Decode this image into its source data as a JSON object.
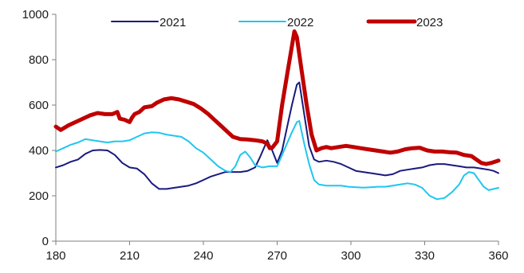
{
  "chart_data": {
    "type": "line",
    "title": "",
    "xlabel": "",
    "ylabel": "",
    "xlim": [
      180,
      360
    ],
    "ylim": [
      0,
      1000
    ],
    "xticks": [
      180,
      210,
      240,
      270,
      300,
      330,
      360
    ],
    "yticks": [
      0,
      200,
      400,
      600,
      800,
      1000
    ],
    "grid": false,
    "legend_position": "top",
    "series": [
      {
        "name": "2021",
        "color": "#1a1a7e",
        "points": [
          [
            180,
            325
          ],
          [
            183,
            335
          ],
          [
            186,
            350
          ],
          [
            189,
            360
          ],
          [
            192,
            385
          ],
          [
            195,
            400
          ],
          [
            198,
            402
          ],
          [
            201,
            400
          ],
          [
            204,
            380
          ],
          [
            207,
            345
          ],
          [
            210,
            325
          ],
          [
            213,
            320
          ],
          [
            216,
            295
          ],
          [
            219,
            255
          ],
          [
            222,
            230
          ],
          [
            225,
            230
          ],
          [
            228,
            235
          ],
          [
            231,
            240
          ],
          [
            234,
            245
          ],
          [
            237,
            255
          ],
          [
            240,
            270
          ],
          [
            243,
            285
          ],
          [
            246,
            295
          ],
          [
            249,
            305
          ],
          [
            252,
            305
          ],
          [
            255,
            305
          ],
          [
            258,
            310
          ],
          [
            261,
            325
          ],
          [
            263,
            370
          ],
          [
            265,
            420
          ],
          [
            266,
            445
          ],
          [
            268,
            400
          ],
          [
            270,
            345
          ],
          [
            272,
            400
          ],
          [
            274,
            500
          ],
          [
            276,
            600
          ],
          [
            278,
            690
          ],
          [
            279,
            700
          ],
          [
            281,
            560
          ],
          [
            283,
            420
          ],
          [
            285,
            360
          ],
          [
            287,
            350
          ],
          [
            290,
            355
          ],
          [
            293,
            350
          ],
          [
            296,
            340
          ],
          [
            299,
            325
          ],
          [
            302,
            310
          ],
          [
            305,
            305
          ],
          [
            308,
            300
          ],
          [
            311,
            295
          ],
          [
            314,
            290
          ],
          [
            317,
            295
          ],
          [
            320,
            310
          ],
          [
            323,
            315
          ],
          [
            326,
            320
          ],
          [
            329,
            325
          ],
          [
            332,
            335
          ],
          [
            335,
            340
          ],
          [
            338,
            340
          ],
          [
            341,
            335
          ],
          [
            344,
            330
          ],
          [
            347,
            325
          ],
          [
            350,
            325
          ],
          [
            353,
            320
          ],
          [
            356,
            315
          ],
          [
            358,
            310
          ],
          [
            360,
            300
          ]
        ]
      },
      {
        "name": "2022",
        "color": "#1fc6f0",
        "points": [
          [
            180,
            395
          ],
          [
            183,
            410
          ],
          [
            186,
            425
          ],
          [
            189,
            435
          ],
          [
            192,
            450
          ],
          [
            195,
            445
          ],
          [
            198,
            440
          ],
          [
            201,
            435
          ],
          [
            204,
            440
          ],
          [
            207,
            440
          ],
          [
            210,
            445
          ],
          [
            213,
            460
          ],
          [
            216,
            475
          ],
          [
            219,
            480
          ],
          [
            222,
            478
          ],
          [
            225,
            470
          ],
          [
            228,
            465
          ],
          [
            231,
            460
          ],
          [
            234,
            440
          ],
          [
            237,
            410
          ],
          [
            240,
            390
          ],
          [
            243,
            360
          ],
          [
            246,
            330
          ],
          [
            249,
            310
          ],
          [
            251,
            305
          ],
          [
            253,
            330
          ],
          [
            255,
            380
          ],
          [
            257,
            395
          ],
          [
            259,
            370
          ],
          [
            261,
            335
          ],
          [
            264,
            325
          ],
          [
            267,
            330
          ],
          [
            270,
            330
          ],
          [
            272,
            380
          ],
          [
            274,
            430
          ],
          [
            276,
            480
          ],
          [
            278,
            525
          ],
          [
            279,
            530
          ],
          [
            281,
            430
          ],
          [
            283,
            340
          ],
          [
            285,
            270
          ],
          [
            287,
            250
          ],
          [
            290,
            245
          ],
          [
            293,
            245
          ],
          [
            296,
            245
          ],
          [
            299,
            240
          ],
          [
            302,
            238
          ],
          [
            305,
            236
          ],
          [
            308,
            238
          ],
          [
            311,
            240
          ],
          [
            314,
            240
          ],
          [
            317,
            245
          ],
          [
            320,
            250
          ],
          [
            323,
            255
          ],
          [
            326,
            250
          ],
          [
            329,
            235
          ],
          [
            332,
            200
          ],
          [
            335,
            185
          ],
          [
            338,
            190
          ],
          [
            341,
            215
          ],
          [
            344,
            250
          ],
          [
            346,
            290
          ],
          [
            348,
            305
          ],
          [
            350,
            300
          ],
          [
            352,
            270
          ],
          [
            354,
            240
          ],
          [
            356,
            225
          ],
          [
            358,
            230
          ],
          [
            360,
            235
          ]
        ]
      },
      {
        "name": "2023",
        "color": "#c00000",
        "points": [
          [
            180,
            505
          ],
          [
            182,
            490
          ],
          [
            185,
            510
          ],
          [
            188,
            525
          ],
          [
            191,
            540
          ],
          [
            194,
            555
          ],
          [
            197,
            565
          ],
          [
            200,
            560
          ],
          [
            203,
            560
          ],
          [
            205,
            570
          ],
          [
            206,
            540
          ],
          [
            208,
            535
          ],
          [
            210,
            525
          ],
          [
            211,
            545
          ],
          [
            212,
            560
          ],
          [
            214,
            570
          ],
          [
            216,
            590
          ],
          [
            219,
            595
          ],
          [
            221,
            610
          ],
          [
            224,
            625
          ],
          [
            227,
            630
          ],
          [
            230,
            625
          ],
          [
            233,
            615
          ],
          [
            236,
            605
          ],
          [
            239,
            585
          ],
          [
            242,
            560
          ],
          [
            245,
            530
          ],
          [
            248,
            500
          ],
          [
            250,
            480
          ],
          [
            252,
            460
          ],
          [
            255,
            450
          ],
          [
            258,
            448
          ],
          [
            261,
            445
          ],
          [
            264,
            440
          ],
          [
            266,
            430
          ],
          [
            267,
            410
          ],
          [
            268,
            412
          ],
          [
            270,
            440
          ],
          [
            272,
            600
          ],
          [
            274,
            730
          ],
          [
            276,
            860
          ],
          [
            277,
            925
          ],
          [
            278,
            900
          ],
          [
            280,
            750
          ],
          [
            282,
            600
          ],
          [
            284,
            470
          ],
          [
            286,
            400
          ],
          [
            288,
            410
          ],
          [
            290,
            415
          ],
          [
            292,
            410
          ],
          [
            295,
            415
          ],
          [
            298,
            420
          ],
          [
            301,
            415
          ],
          [
            304,
            410
          ],
          [
            307,
            405
          ],
          [
            310,
            400
          ],
          [
            313,
            395
          ],
          [
            316,
            390
          ],
          [
            319,
            395
          ],
          [
            322,
            405
          ],
          [
            325,
            410
          ],
          [
            328,
            412
          ],
          [
            331,
            400
          ],
          [
            334,
            395
          ],
          [
            337,
            395
          ],
          [
            340,
            392
          ],
          [
            343,
            390
          ],
          [
            346,
            380
          ],
          [
            349,
            375
          ],
          [
            351,
            360
          ],
          [
            353,
            345
          ],
          [
            355,
            340
          ],
          [
            357,
            345
          ],
          [
            360,
            355
          ]
        ]
      }
    ]
  }
}
